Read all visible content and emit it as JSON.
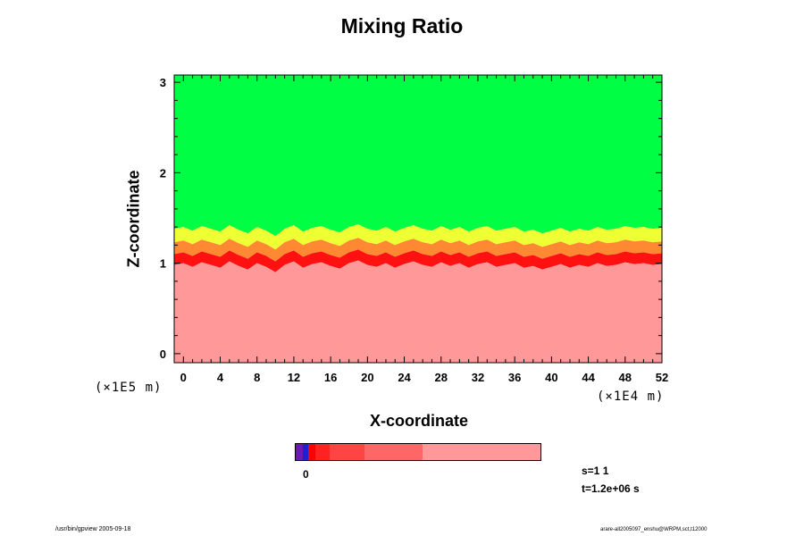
{
  "title": "Mixing Ratio",
  "chart_data": {
    "type": "heatmap",
    "title": "Mixing Ratio",
    "xlabel": "X-coordinate",
    "ylabel": "Z-coordinate",
    "x_unit_label": "(×1E4 m)",
    "y_unit_label": "(×1E5 m)",
    "xlim": [
      -1,
      52
    ],
    "ylim": [
      -0.1,
      3.08
    ],
    "x_ticks": [
      "0",
      "4",
      "8",
      "12",
      "16",
      "20",
      "24",
      "28",
      "32",
      "36",
      "40",
      "44",
      "48",
      "52"
    ],
    "y_ticks": [
      "0",
      "1",
      "2",
      "3"
    ],
    "x_minor_step": 1,
    "y_minor_step": 0.2,
    "regions": [
      {
        "name": "upper",
        "color": "#00ff44",
        "z_from": 1.45,
        "z_to": 3.08
      },
      {
        "name": "mixing-yellow",
        "color": "#eeff33",
        "z_from": 1.3,
        "z_to": 1.45
      },
      {
        "name": "mixing-orange",
        "color": "#ff8833",
        "z_from": 1.17,
        "z_to": 1.3
      },
      {
        "name": "mixing-red",
        "color": "#ff1111",
        "z_from": 1.05,
        "z_to": 1.17
      },
      {
        "name": "lower",
        "color": "#ff9999",
        "z_from": -0.1,
        "z_to": 1.05
      }
    ],
    "interface_z": [
      1.38,
      1.4,
      1.36,
      1.41,
      1.38,
      1.35,
      1.42,
      1.37,
      1.33,
      1.4,
      1.36,
      1.3,
      1.38,
      1.42,
      1.35,
      1.39,
      1.41,
      1.37,
      1.34,
      1.4,
      1.43,
      1.38,
      1.36,
      1.4,
      1.35,
      1.39,
      1.42,
      1.38,
      1.36,
      1.41,
      1.37,
      1.4,
      1.35,
      1.39,
      1.41,
      1.36,
      1.38,
      1.4,
      1.35,
      1.37,
      1.33,
      1.36,
      1.39,
      1.35,
      1.38,
      1.36,
      1.4,
      1.37,
      1.38,
      1.41,
      1.39,
      1.4,
      1.38,
      1.39
    ],
    "colorbar": {
      "tick_label": "0",
      "segments": [
        {
          "color": "#6a1ab0",
          "fraction": 0.03
        },
        {
          "color": "#2020d0",
          "fraction": 0.02
        },
        {
          "color": "#ff0000",
          "fraction": 0.03
        },
        {
          "color": "#ff2222",
          "fraction": 0.06
        },
        {
          "color": "#ff4444",
          "fraction": 0.14
        },
        {
          "color": "#ff6666",
          "fraction": 0.24
        },
        {
          "color": "#ff9999",
          "fraction": 0.48
        }
      ]
    }
  },
  "info": {
    "step": "s=1 1",
    "time": "t=1.2e+06 s"
  },
  "footer": {
    "left": "/usr/bin/gpview 2005-09-18",
    "right": "arare-all2005097_enshu@WRPM,sct,t12000"
  }
}
